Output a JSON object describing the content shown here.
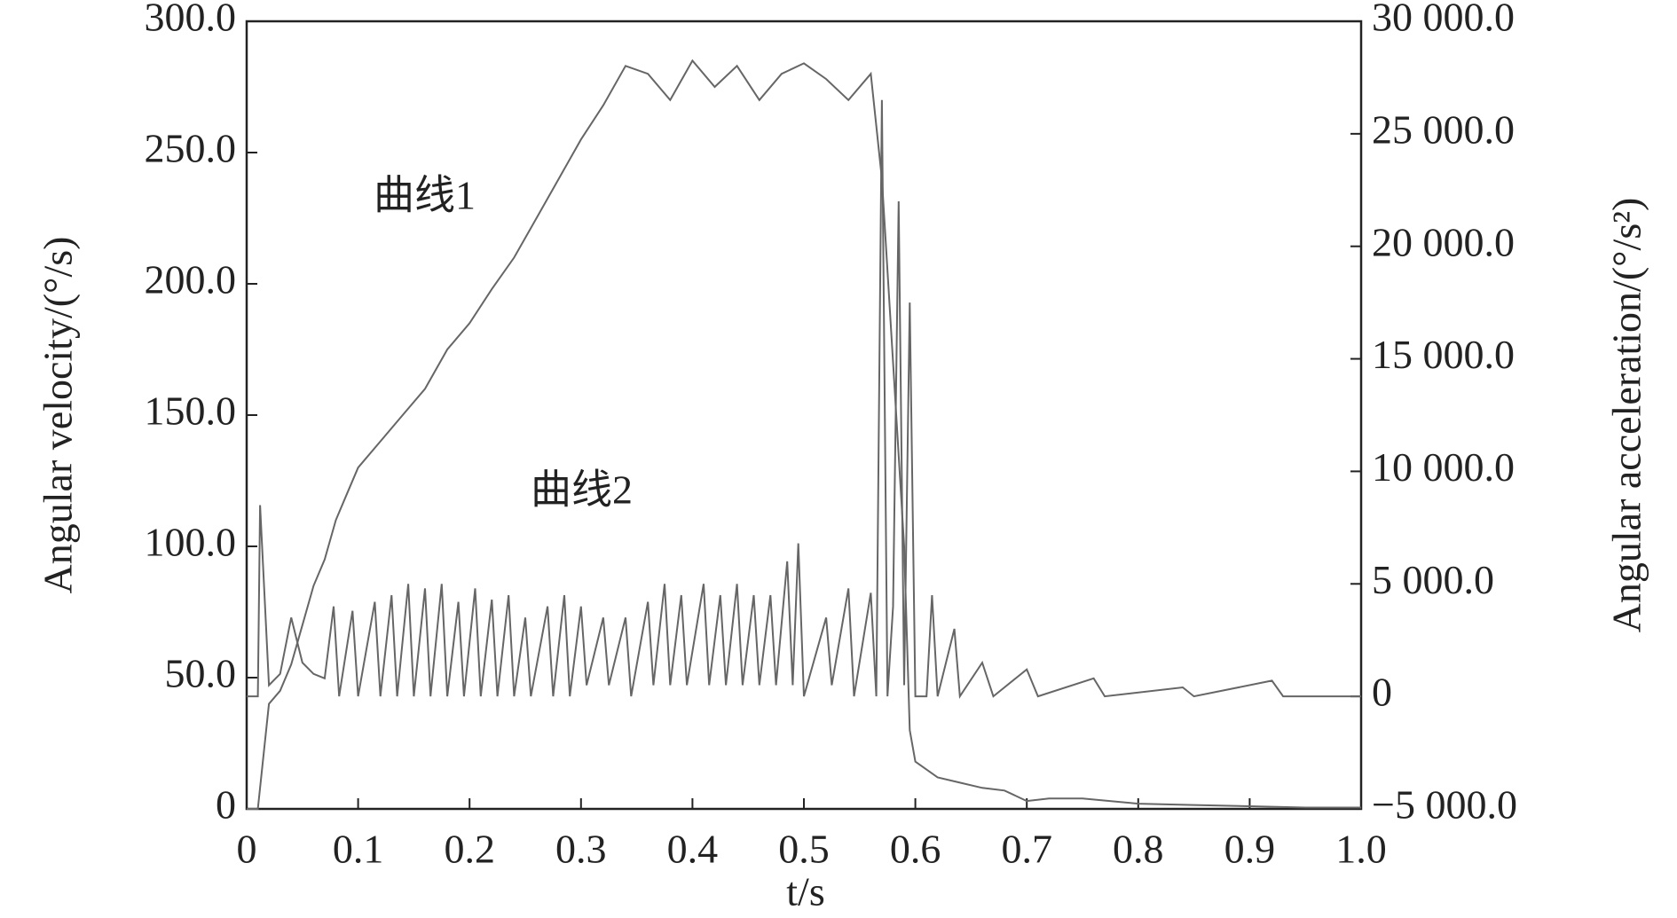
{
  "chart_data": {
    "type": "line",
    "xlabel": "t/s",
    "ylabel": "Angular velocity/(°/s)",
    "y2label": "Angular acceleration/(°/s²)",
    "xlim": [
      0,
      1
    ],
    "xticks": [
      0,
      {
        "value": 0.1,
        "label": "0.1"
      },
      {
        "value": 0.2,
        "label": "0.2"
      },
      {
        "value": 0.3,
        "label": "0.3"
      },
      {
        "value": 0.4,
        "label": "0.4"
      },
      {
        "value": 0.5,
        "label": "0.5"
      },
      {
        "value": 0.6,
        "label": "0.6"
      },
      {
        "value": 0.7,
        "label": "0.7"
      },
      {
        "value": 0.8,
        "label": "0.8"
      },
      {
        "value": 0.9,
        "label": "0.9"
      },
      {
        "value": 1,
        "label": "1.0"
      }
    ],
    "ylim": [
      0,
      300
    ],
    "yticks": [
      0,
      {
        "value": 50,
        "label": "50.0"
      },
      {
        "value": 100,
        "label": "100.0"
      },
      {
        "value": 150,
        "label": "150.0"
      },
      {
        "value": 200,
        "label": "200.0"
      },
      {
        "value": 250,
        "label": "250.0"
      },
      {
        "value": 300,
        "label": "300.0"
      }
    ],
    "y2lim": [
      -5000,
      30000
    ],
    "y2ticks": [
      {
        "value": -5000,
        "label": "−5 000.0"
      },
      0,
      {
        "value": 5000,
        "label": "5 000.0"
      },
      {
        "value": 10000,
        "label": "10 000.0"
      },
      {
        "value": 15000,
        "label": "15 000.0"
      },
      {
        "value": 20000,
        "label": "20 000.0"
      },
      {
        "value": 25000,
        "label": "25 000.0"
      },
      {
        "value": 30000,
        "label": "30 000.0"
      }
    ],
    "series": [
      {
        "name": "曲线1",
        "color": "#666666",
        "x": [
          0,
          0.01,
          0.02,
          0.03,
          0.04,
          0.05,
          0.06,
          0.07,
          0.08,
          0.09,
          0.1,
          0.12,
          0.14,
          0.16,
          0.18,
          0.2,
          0.22,
          0.24,
          0.26,
          0.28,
          0.3,
          0.32,
          0.34,
          0.36,
          0.38,
          0.4,
          0.42,
          0.44,
          0.46,
          0.48,
          0.5,
          0.52,
          0.54,
          0.56,
          0.57,
          0.58,
          0.59,
          0.595,
          0.6,
          0.62,
          0.64,
          0.66,
          0.68,
          0.7,
          0.72,
          0.75,
          0.8,
          0.85,
          0.9,
          0.95,
          1
        ],
        "values": [
          0,
          0,
          40,
          45,
          55,
          70,
          85,
          95,
          110,
          120,
          130,
          140,
          150,
          160,
          175,
          185,
          198,
          210,
          225,
          240,
          255,
          268,
          283,
          280,
          270,
          285,
          275,
          283,
          270,
          280,
          284,
          278,
          270,
          280,
          240,
          170,
          100,
          30,
          18,
          12,
          10,
          8,
          7,
          3,
          4,
          4,
          2,
          1.5,
          1,
          0.5,
          0.5
        ]
      },
      {
        "name": "曲线2",
        "color": "#666666",
        "axis": "y2",
        "x": [
          0,
          0.01,
          0.012,
          0.02,
          0.03,
          0.04,
          0.05,
          0.06,
          0.07,
          0.078,
          0.083,
          0.095,
          0.1,
          0.115,
          0.12,
          0.13,
          0.135,
          0.145,
          0.15,
          0.16,
          0.165,
          0.175,
          0.18,
          0.19,
          0.195,
          0.205,
          0.21,
          0.22,
          0.225,
          0.235,
          0.24,
          0.25,
          0.255,
          0.27,
          0.275,
          0.285,
          0.29,
          0.3,
          0.305,
          0.32,
          0.325,
          0.34,
          0.345,
          0.36,
          0.365,
          0.375,
          0.38,
          0.39,
          0.395,
          0.41,
          0.415,
          0.425,
          0.43,
          0.44,
          0.445,
          0.455,
          0.46,
          0.47,
          0.475,
          0.485,
          0.49,
          0.495,
          0.5,
          0.52,
          0.525,
          0.54,
          0.545,
          0.56,
          0.565,
          0.57,
          0.575,
          0.58,
          0.585,
          0.59,
          0.595,
          0.6,
          0.61,
          0.615,
          0.62,
          0.635,
          0.64,
          0.66,
          0.67,
          0.7,
          0.71,
          0.76,
          0.77,
          0.84,
          0.85,
          0.92,
          0.93,
          1
        ],
        "values": [
          0,
          0,
          8500,
          500,
          1000,
          3500,
          1500,
          1000,
          800,
          4000,
          0,
          3800,
          0,
          4200,
          0,
          4500,
          0,
          5000,
          0,
          4800,
          0,
          5000,
          0,
          4200,
          0,
          4800,
          0,
          4300,
          0,
          4500,
          0,
          3500,
          0,
          4000,
          0,
          4500,
          0,
          4000,
          500,
          3500,
          500,
          3500,
          0,
          4200,
          500,
          5000,
          500,
          4500,
          500,
          5000,
          500,
          4500,
          500,
          5000,
          500,
          4500,
          500,
          4500,
          500,
          6000,
          500,
          6800,
          0,
          3500,
          500,
          4800,
          0,
          4600,
          0,
          26500,
          0,
          4000,
          22000,
          500,
          17500,
          0,
          0,
          4500,
          0,
          3000,
          0,
          1500,
          0,
          1200,
          0,
          800,
          0,
          400,
          0,
          700,
          0,
          0
        ]
      }
    ]
  }
}
